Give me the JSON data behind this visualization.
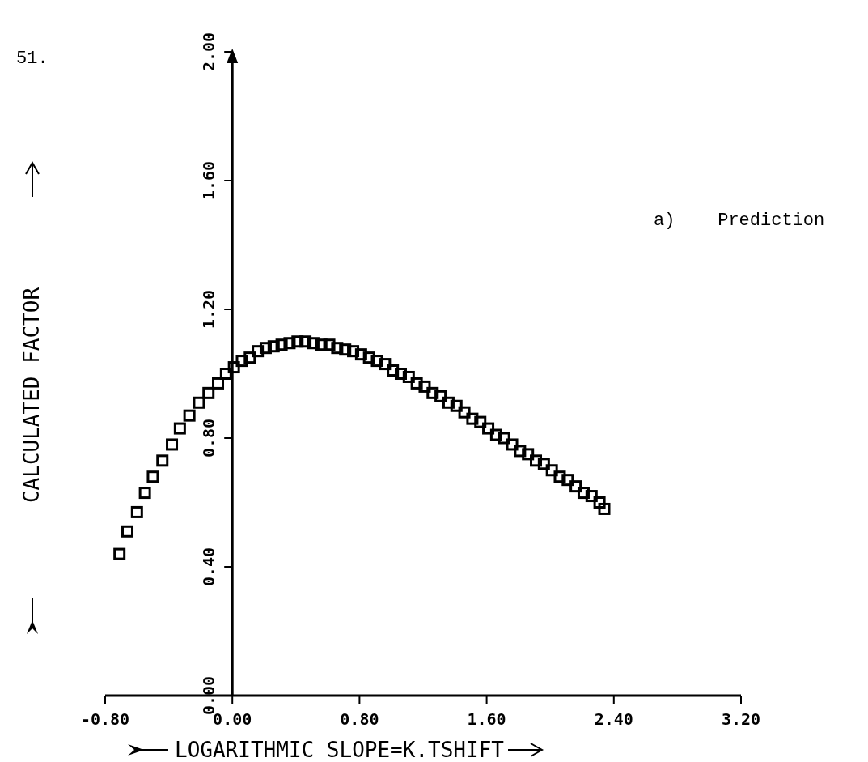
{
  "chart_data": {
    "type": "scatter",
    "xlabel": "LOGARITHMIC SLOPE=K.TSHIFT",
    "ylabel": "CALCULATED FACTOR",
    "annotations": [
      "51.",
      "a)    Prediction"
    ],
    "marker": "square",
    "xlim": [
      -0.8,
      3.2
    ],
    "ylim": [
      0,
      2
    ],
    "xticks": [
      {
        "value": -0.8,
        "label": "-0.80"
      },
      {
        "value": 0,
        "label": "0.00"
      },
      {
        "value": 0.8,
        "label": "0.80"
      },
      {
        "value": 1.6,
        "label": "1.60"
      },
      {
        "value": 2.4,
        "label": "2.40"
      },
      {
        "value": 3.2,
        "label": "3.20"
      }
    ],
    "yticks": [
      {
        "value": 0,
        "label": "0.00"
      },
      {
        "value": 0.4,
        "label": "0.40"
      },
      {
        "value": 0.8,
        "label": "0.80"
      },
      {
        "value": 1.2,
        "label": "1.20"
      },
      {
        "value": 1.6,
        "label": "1.60"
      },
      {
        "value": 2,
        "label": "2.00"
      }
    ],
    "series": [
      {
        "color": "#000000",
        "x": [
          -0.71,
          -0.66,
          -0.6,
          -0.55,
          -0.5,
          -0.44,
          -0.38,
          -0.33,
          -0.27,
          -0.21,
          -0.15,
          -0.09,
          -0.04,
          0.01,
          0.06,
          0.11,
          0.16,
          0.21,
          0.26,
          0.31,
          0.36,
          0.41,
          0.46,
          0.51,
          0.56,
          0.61,
          0.66,
          0.71,
          0.76,
          0.81,
          0.86,
          0.91,
          0.96,
          1.01,
          1.06,
          1.11,
          1.16,
          1.21,
          1.26,
          1.31,
          1.36,
          1.41,
          1.46,
          1.51,
          1.56,
          1.61,
          1.66,
          1.71,
          1.76,
          1.81,
          1.86,
          1.91,
          1.96,
          2.01,
          2.06,
          2.11,
          2.16,
          2.21,
          2.26,
          2.31,
          2.34
        ],
        "values": [
          0.44,
          0.51,
          0.57,
          0.63,
          0.68,
          0.73,
          0.78,
          0.83,
          0.87,
          0.91,
          0.94,
          0.97,
          1.0,
          1.02,
          1.04,
          1.05,
          1.07,
          1.08,
          1.085,
          1.09,
          1.095,
          1.1,
          1.1,
          1.095,
          1.09,
          1.09,
          1.08,
          1.075,
          1.07,
          1.06,
          1.05,
          1.04,
          1.03,
          1.01,
          1.0,
          0.99,
          0.97,
          0.96,
          0.94,
          0.93,
          0.91,
          0.9,
          0.88,
          0.86,
          0.85,
          0.83,
          0.81,
          0.8,
          0.78,
          0.76,
          0.75,
          0.73,
          0.72,
          0.7,
          0.68,
          0.67,
          0.65,
          0.63,
          0.62,
          0.6,
          0.58
        ]
      }
    ]
  }
}
